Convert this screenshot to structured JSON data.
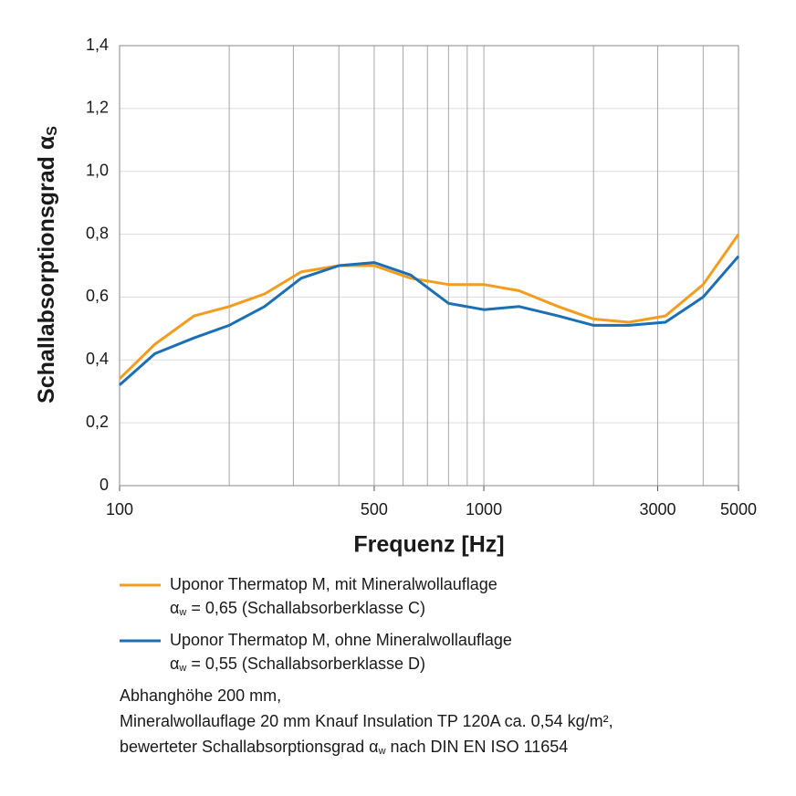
{
  "chart_data": {
    "type": "line",
    "x_label": "Frequenz [Hz]",
    "y_label": {
      "text": "Schallabsorptionsgrad α",
      "sub": "S"
    },
    "log_x": true,
    "xlim": [
      100,
      5000
    ],
    "xticks": [
      100,
      500,
      1000,
      3000,
      5000
    ],
    "x_gridlines": [
      200,
      300,
      400,
      500,
      600,
      700,
      800,
      900,
      1000,
      2000,
      3000,
      4000,
      5000
    ],
    "ylim": [
      0,
      1.4
    ],
    "yticks": [
      0,
      {
        "value": 0.2,
        "label": "0,2"
      },
      {
        "value": 0.4,
        "label": "0,4"
      },
      {
        "value": 0.6,
        "label": "0,6"
      },
      {
        "value": 0.8,
        "label": "0,8"
      },
      {
        "value": 1,
        "label": "1,0"
      },
      {
        "value": 1.2,
        "label": "1,2"
      },
      {
        "value": 1.4,
        "label": "1,4"
      }
    ],
    "grid": true,
    "x": [
      100,
      125,
      160,
      200,
      250,
      315,
      400,
      500,
      630,
      800,
      1000,
      1250,
      1600,
      2000,
      2500,
      3150,
      4000,
      5000
    ],
    "series": [
      {
        "name": "Uponor Thermatop M, mit Mineralwollauflage",
        "color": "#f39c1e",
        "note": {
          "symbol": "α",
          "sub": "w",
          "text": " = 0,65 (Schallabsorberklasse C)"
        },
        "values": [
          0.34,
          0.45,
          0.54,
          0.57,
          0.61,
          0.68,
          0.7,
          0.7,
          0.66,
          0.64,
          0.64,
          0.62,
          0.57,
          0.53,
          0.52,
          0.54,
          0.64,
          0.8
        ]
      },
      {
        "name": "Uponor Thermatop M, ohne Mineralwollauflage",
        "color": "#1b6fb5",
        "note": {
          "symbol": "α",
          "sub": "w",
          "text": " = 0,55 (Schallabsorberklasse D)"
        },
        "values": [
          0.32,
          0.42,
          0.47,
          0.51,
          0.57,
          0.66,
          0.7,
          0.71,
          0.67,
          0.58,
          0.56,
          0.57,
          0.54,
          0.51,
          0.51,
          0.52,
          0.6,
          0.73
        ]
      }
    ],
    "footnote": [
      "Abhanghöhe 200 mm,",
      "Mineralwollauflage 20 mm Knauf Insulation TP 120A ca. 0,54 kg/m²,",
      {
        "before": "bewerteter Schallabsorptionsgrad α",
        "sub": "w",
        "after": " nach DIN EN ISO 11654"
      }
    ]
  }
}
